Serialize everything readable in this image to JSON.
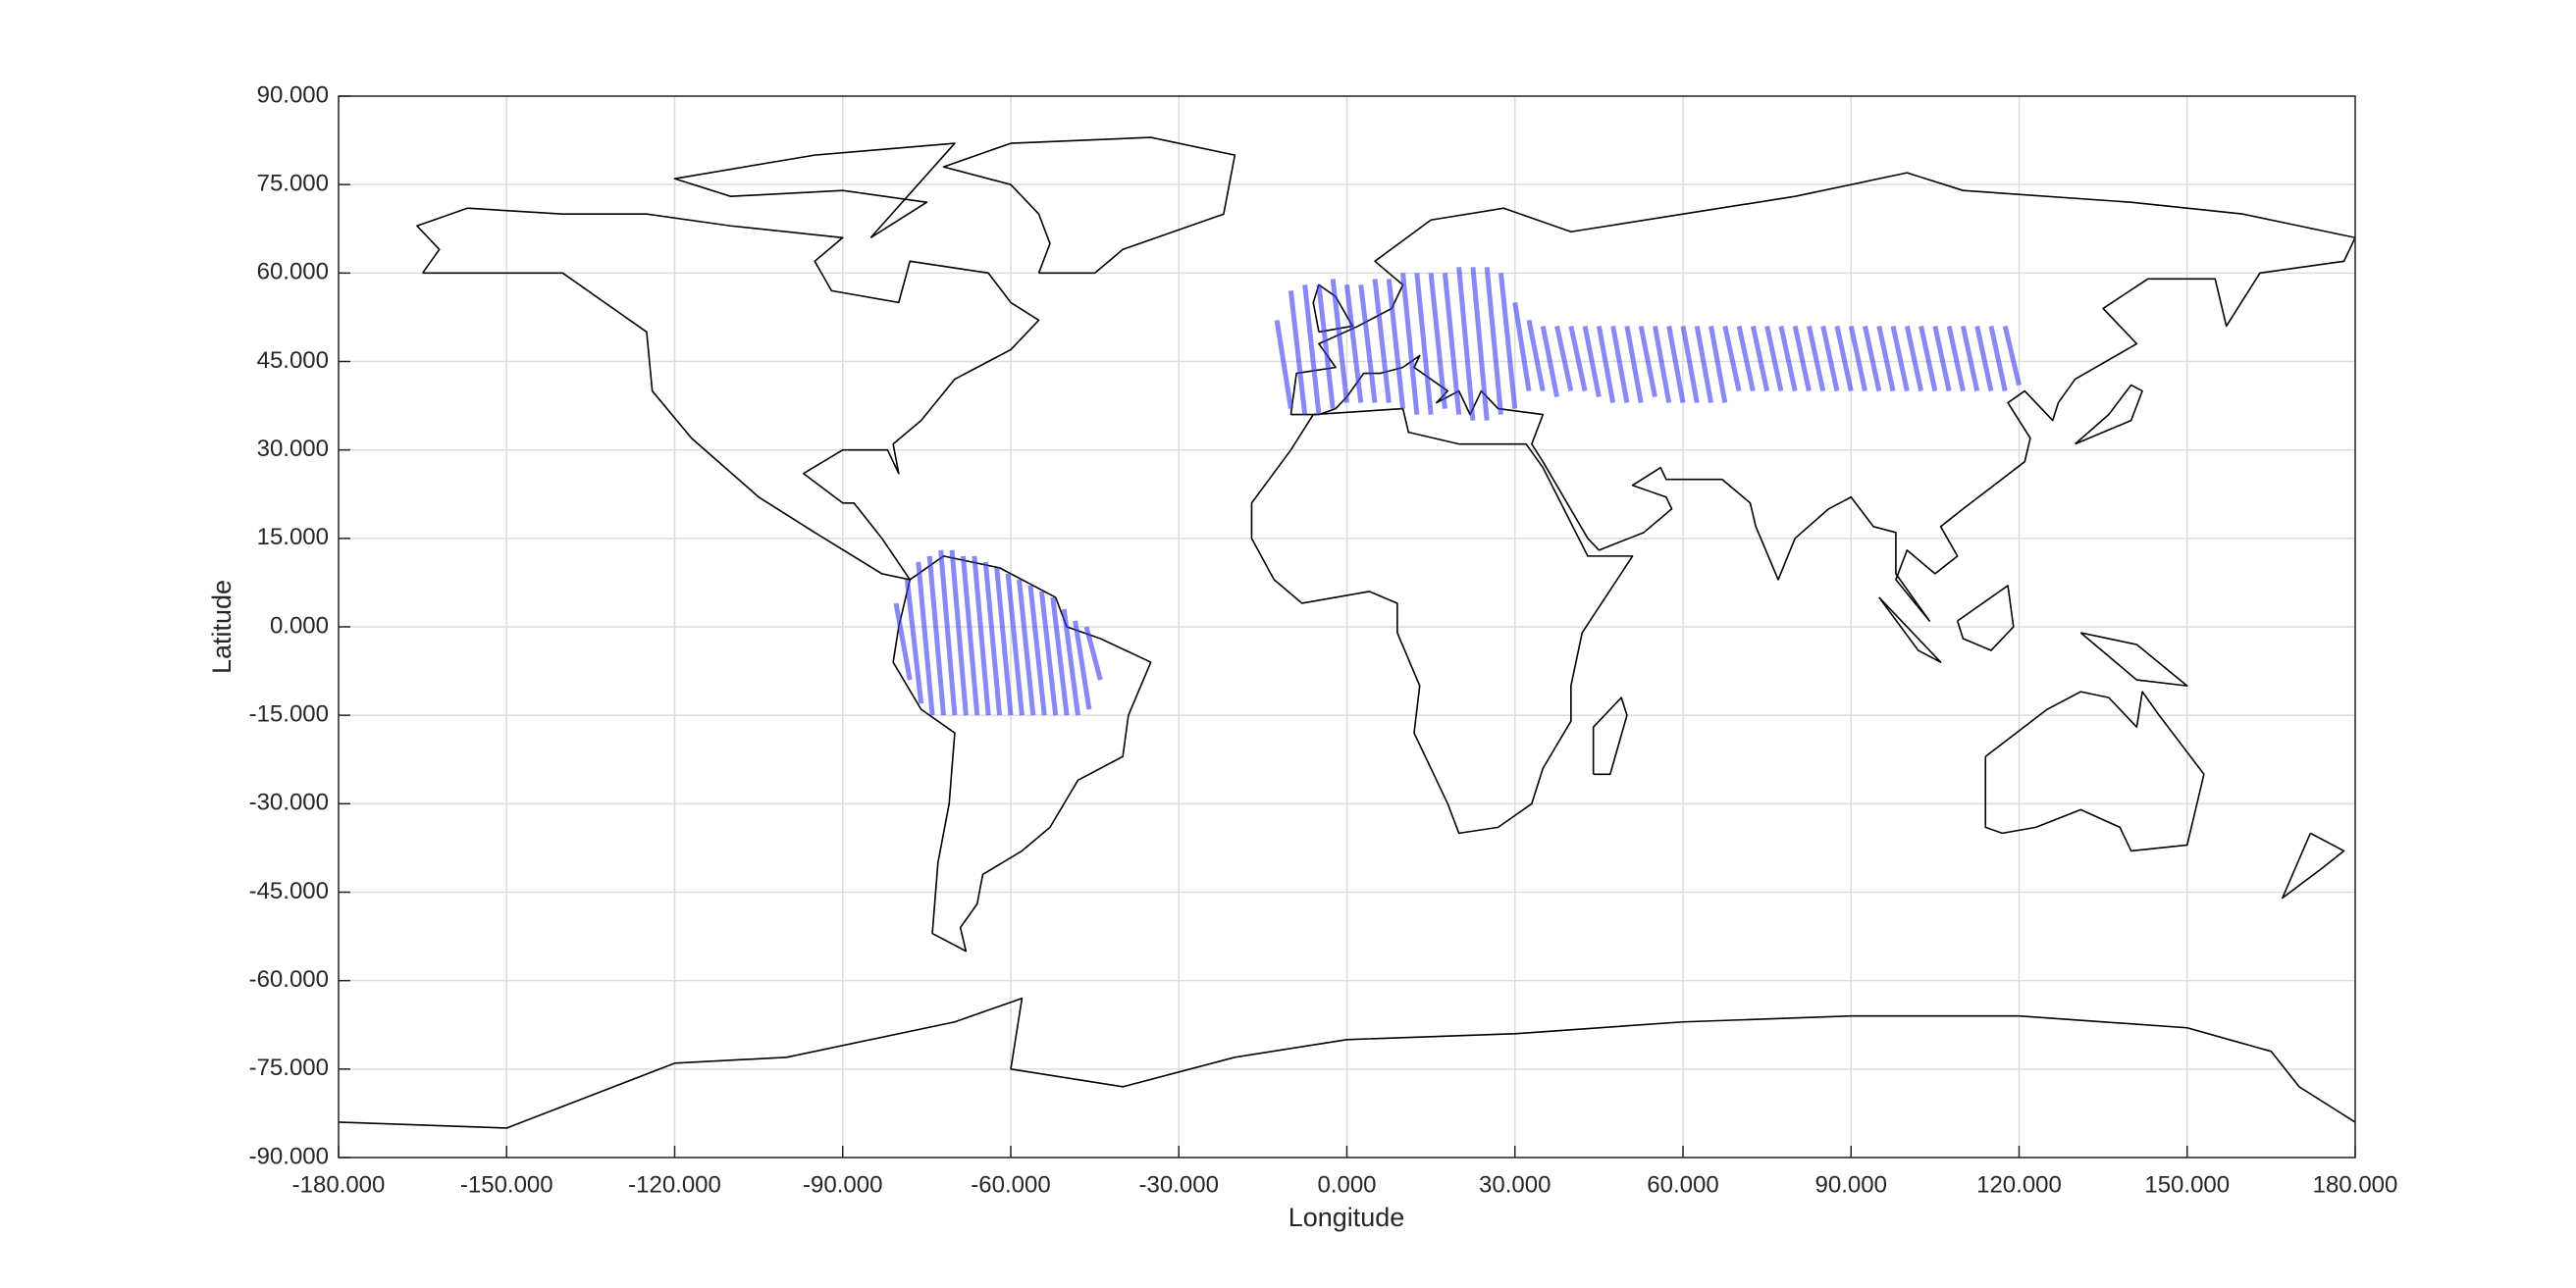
{
  "chart_data": {
    "type": "map",
    "xlabel": "Longitude",
    "ylabel": "Latitude",
    "xlim": [
      -180,
      180
    ],
    "ylim": [
      -90,
      90
    ],
    "xticks": [
      {
        "value": -180,
        "label": "-180.000"
      },
      {
        "value": -150,
        "label": "-150.000"
      },
      {
        "value": -120,
        "label": "-120.000"
      },
      {
        "value": -90,
        "label": "-90.000"
      },
      {
        "value": -60,
        "label": "-60.000"
      },
      {
        "value": -30,
        "label": "-30.000"
      },
      {
        "value": 0,
        "label": "0.000"
      },
      {
        "value": 30,
        "label": "30.000"
      },
      {
        "value": 60,
        "label": "60.000"
      },
      {
        "value": 90,
        "label": "90.000"
      },
      {
        "value": 120,
        "label": "120.000"
      },
      {
        "value": 150,
        "label": "150.000"
      },
      {
        "value": 180,
        "label": "180.000"
      }
    ],
    "yticks": [
      {
        "value": -90,
        "label": "-90.000"
      },
      {
        "value": -75,
        "label": "-75.000"
      },
      {
        "value": -60,
        "label": "-60.000"
      },
      {
        "value": -45,
        "label": "-45.000"
      },
      {
        "value": -30,
        "label": "-30.000"
      },
      {
        "value": -15,
        "label": "-15.000"
      },
      {
        "value": 0,
        "label": "0.000"
      },
      {
        "value": 15,
        "label": "15.000"
      },
      {
        "value": 30,
        "label": "30.000"
      },
      {
        "value": 45,
        "label": "45.000"
      },
      {
        "value": 60,
        "label": "60.000"
      },
      {
        "value": 75,
        "label": "75.000"
      },
      {
        "value": 90,
        "label": "90.000"
      }
    ],
    "grid": true,
    "color": "#3a3af0",
    "tracks": {
      "lon_top": [
        -80.5,
        -78.5,
        -76.5,
        -74.5,
        -72.5,
        -70.5,
        -68.5,
        -66.5,
        -64.5,
        -62.5,
        -60.5,
        -58.5,
        -56.5,
        -54.5,
        -52.5,
        -50.5,
        -48.5,
        -46.5,
        -12.5,
        -10,
        -7.5,
        -5,
        -2.5,
        0,
        2.5,
        5,
        7.5,
        10,
        12.5,
        15,
        17.5,
        20,
        22.5,
        25,
        27.5,
        30,
        32.5,
        35,
        37.5,
        40,
        42.5,
        45,
        47.5,
        50,
        52.5,
        55,
        57.5,
        60,
        62.5,
        65,
        67.5,
        70,
        72.5,
        75,
        77.5,
        80,
        82.5,
        85,
        87.5,
        90,
        92.5,
        95,
        97.5,
        100,
        102.5,
        105,
        107.5,
        110,
        112.5,
        115,
        117.5
      ],
      "lon_bottom": [
        -78,
        -76,
        -74,
        -72,
        -70,
        -68,
        -66,
        -64,
        -62,
        -60,
        -58,
        -56,
        -54,
        -52,
        -50,
        -48,
        -46,
        -44,
        -10,
        -7.5,
        -5,
        -2.5,
        0,
        2.5,
        5,
        7.5,
        10,
        12.5,
        15,
        17.5,
        20,
        22.5,
        25,
        27.5,
        30,
        32.5,
        35,
        37.5,
        40,
        42.5,
        45,
        47.5,
        50,
        52.5,
        55,
        57.5,
        60,
        62.5,
        65,
        67.5,
        70,
        72.5,
        75,
        77.5,
        80,
        82.5,
        85,
        87.5,
        90,
        92.5,
        95,
        97.5,
        100,
        102.5,
        105,
        107.5,
        110,
        112.5,
        115,
        117.5,
        120
      ],
      "lat_top": [
        4,
        8,
        11,
        12,
        13,
        13,
        12,
        12,
        11,
        10,
        9,
        8,
        7,
        6,
        5,
        3,
        1,
        0,
        52,
        57,
        58,
        58,
        59,
        58,
        58,
        59,
        59,
        60,
        60,
        60,
        60,
        61,
        61,
        61,
        60,
        55,
        52,
        51,
        51,
        51,
        51,
        51,
        51,
        51,
        51,
        51,
        51,
        51,
        51,
        51,
        51,
        51,
        51,
        51,
        51,
        51,
        51,
        51,
        51,
        51,
        51,
        51,
        51,
        51,
        51,
        51,
        51,
        51,
        51,
        51,
        51
      ],
      "lat_bottom": [
        -9,
        -13,
        -15,
        -15,
        -15,
        -15,
        -15,
        -15,
        -15,
        -15,
        -15,
        -15,
        -15,
        -15,
        -15,
        -15,
        -14,
        -9,
        37,
        36,
        36,
        37,
        38,
        38,
        38,
        38,
        37,
        36,
        36,
        37,
        36,
        35,
        35,
        36,
        37,
        40,
        40,
        39,
        40,
        40,
        39,
        38,
        38,
        38,
        39,
        38,
        38,
        38,
        38,
        38,
        40,
        40,
        40,
        40,
        40,
        40,
        40,
        40,
        40,
        40,
        40,
        40,
        40,
        40,
        40,
        40,
        40,
        40,
        40,
        40,
        41
      ]
    }
  }
}
